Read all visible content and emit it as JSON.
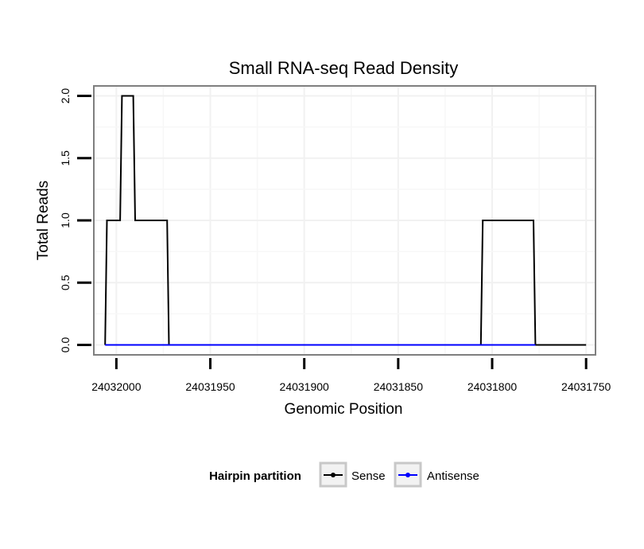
{
  "chart_data": {
    "type": "line",
    "title": "Small RNA-seq Read Density",
    "xlabel": "Genomic Position",
    "ylabel": "Total Reads",
    "x_reversed": true,
    "xlim": [
      24032012,
      24031745
    ],
    "ylim": [
      -0.08,
      2.08
    ],
    "x_ticks": [
      24032000,
      24031950,
      24031900,
      24031850,
      24031800,
      24031750
    ],
    "x_tick_labels": [
      "24032000",
      "24031950",
      "24031900",
      "24031850",
      "24031800",
      "24031750"
    ],
    "y_ticks": [
      0.0,
      0.5,
      1.0,
      1.5,
      2.0
    ],
    "y_tick_labels": [
      "0.0",
      "0.5",
      "1.0",
      "1.5",
      "2.0"
    ],
    "grid": true,
    "legend_position": "bottom",
    "legend_title": "Hairpin partition",
    "series": [
      {
        "name": "Sense",
        "color": "#000000",
        "x": [
          24032006,
          24032005,
          24031998,
          24031997,
          24031991,
          24031990,
          24031983,
          24031982,
          24031973,
          24031972,
          24031806,
          24031805,
          24031778,
          24031777,
          24031750
        ],
        "y": [
          0,
          1,
          1,
          2,
          2,
          1,
          1,
          1,
          1,
          0,
          0,
          1,
          1,
          0,
          0
        ]
      },
      {
        "name": "Antisense",
        "color": "#0000ff",
        "x": [
          24032006,
          24031972,
          24031806,
          24031777
        ],
        "y": [
          0,
          0,
          0,
          0
        ]
      }
    ]
  }
}
